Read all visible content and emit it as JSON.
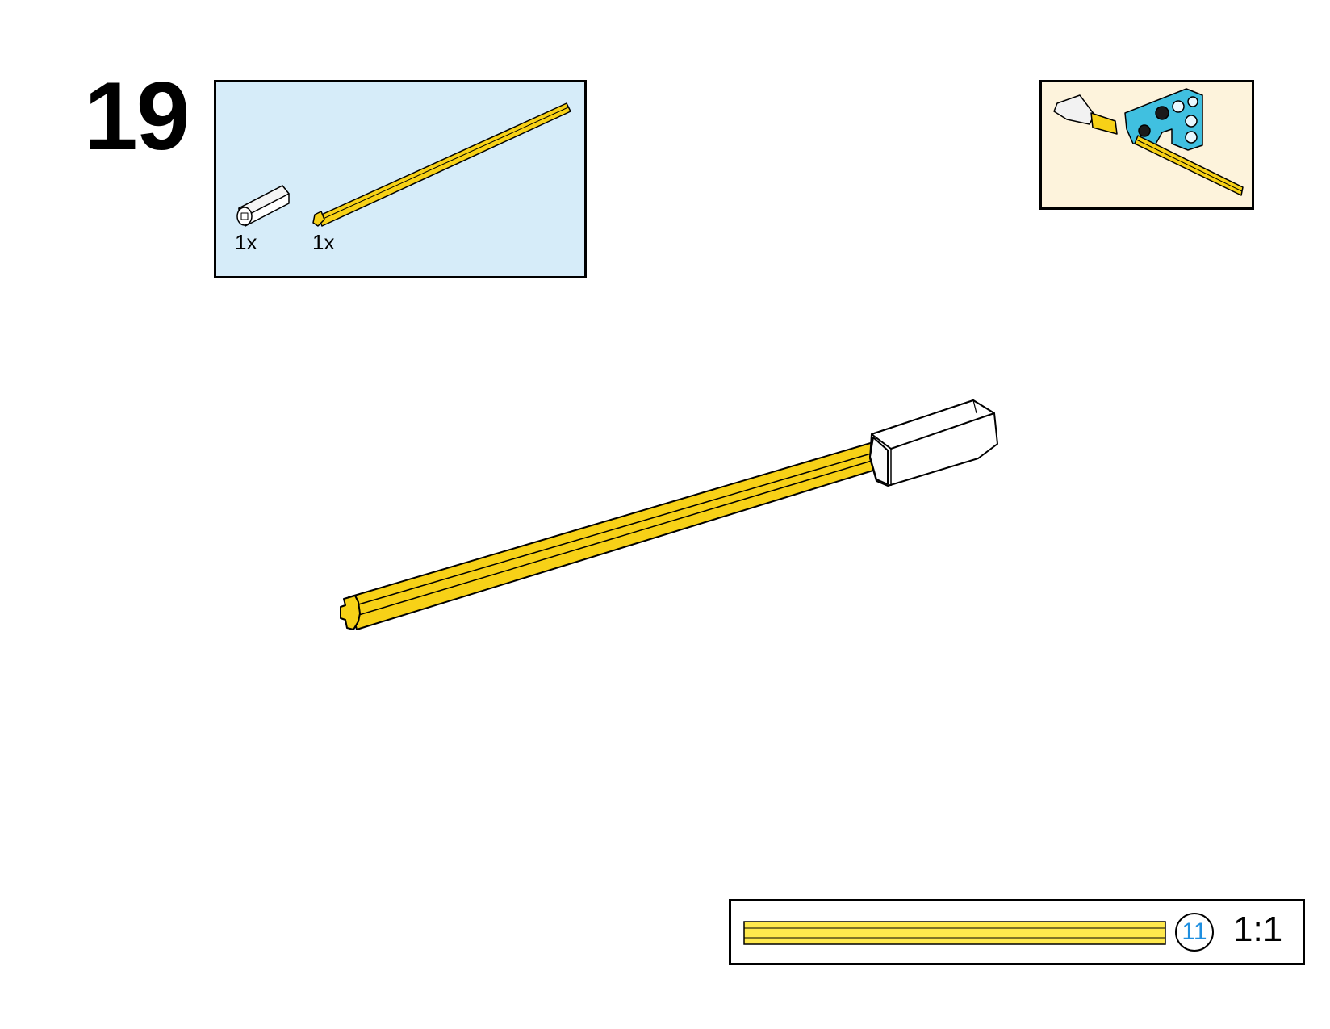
{
  "step": {
    "number": "19"
  },
  "parts_list": {
    "items": [
      {
        "name": "axle-connector",
        "color": "#ffffff",
        "quantity_label": "1x"
      },
      {
        "name": "axle",
        "color": "#f7d117",
        "quantity_label": "1x"
      }
    ]
  },
  "length_indicator": {
    "length": "11",
    "scale": "1:1",
    "axle_color": "#ffe94d"
  },
  "colors": {
    "parts_box_bg": "#d6ecf9",
    "preview_box_bg": "#fdf3dc",
    "axle_yellow": "#f7d117",
    "beam_azure": "#40c0e0",
    "connector_white": "#ffffff"
  }
}
